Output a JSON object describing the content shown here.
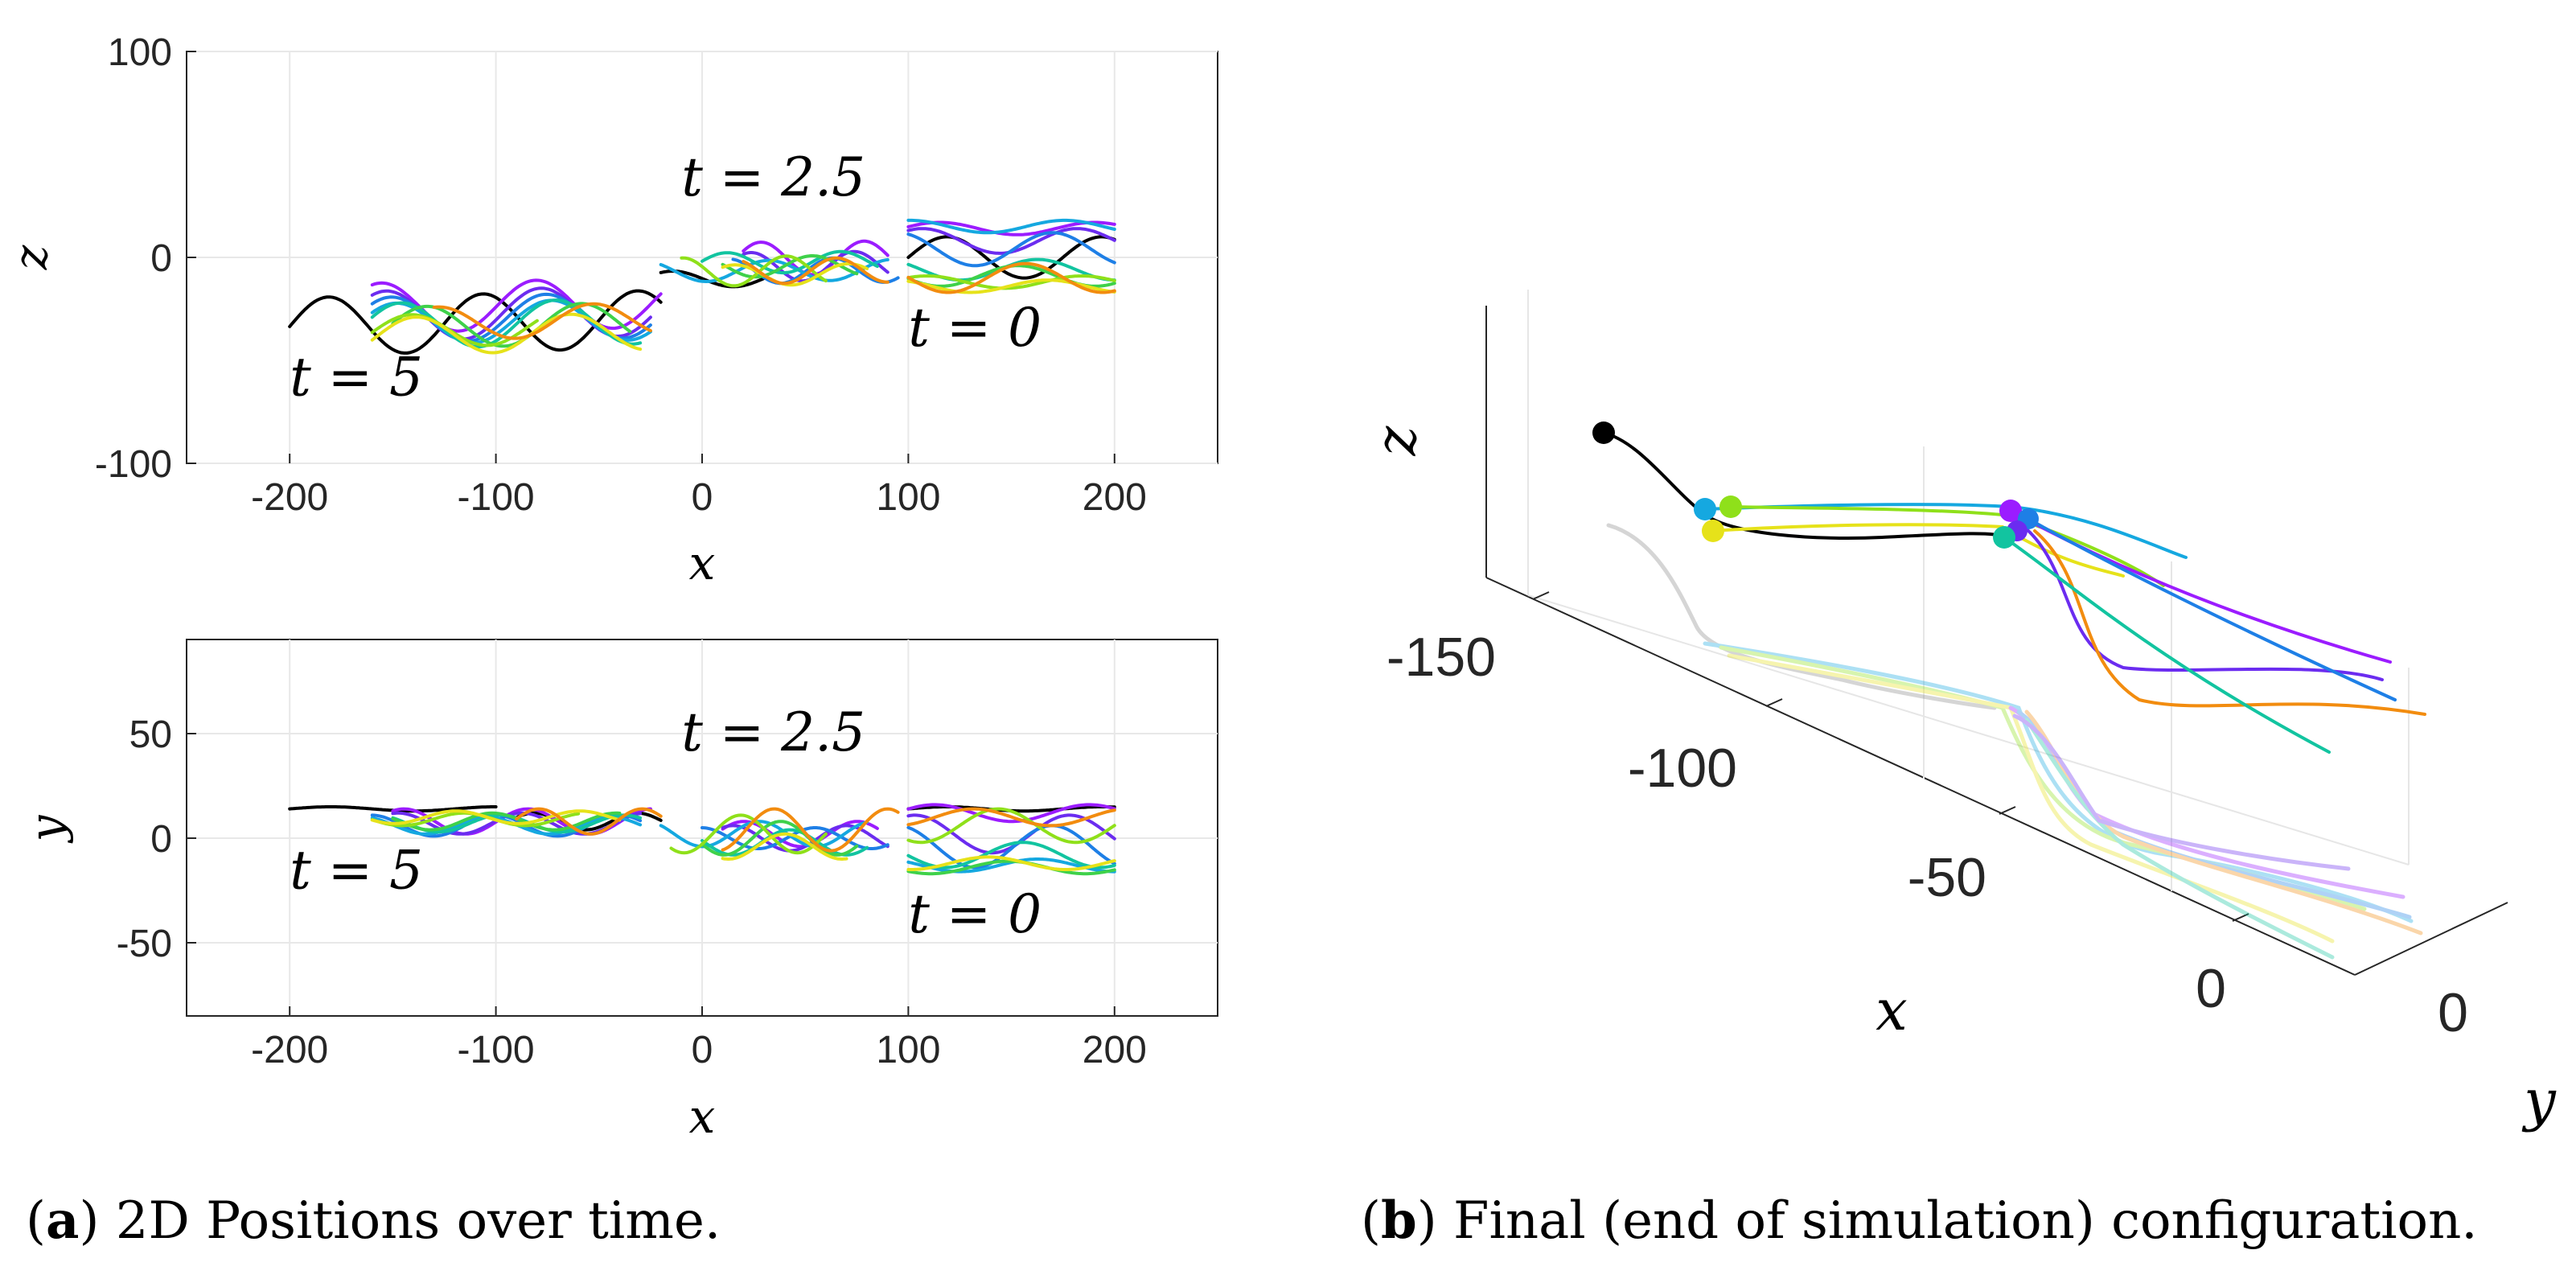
{
  "chart_data": [
    {
      "type": "line",
      "panel": "top-left",
      "title": "",
      "xlabel": "x",
      "ylabel": "z",
      "xlim": [
        -250,
        250
      ],
      "ylim": [
        -100,
        100
      ],
      "xticks": [
        "-200",
        "-100",
        "0",
        "100",
        "200"
      ],
      "yticks": [
        "100",
        "0",
        "-100"
      ],
      "grid": true,
      "annotations": [
        {
          "text": "t = 5",
          "x": -200,
          "y": -67
        },
        {
          "text": "t = 2.5",
          "x": -10,
          "y": 30
        },
        {
          "text": "t = 0",
          "x": 100,
          "y": -43
        }
      ],
      "series": [
        {
          "name": "black",
          "color": "#000000",
          "segments": [
            {
              "x0": -200,
              "x1": -20,
              "base": -30,
              "amp": 14,
              "period": 75,
              "phase": 0,
              "slope": 0.2,
              "dx": 0
            },
            {
              "x0": -20,
              "x1": 30,
              "base": -10,
              "amp": 4,
              "period": 60,
              "phase": 1,
              "slope": 0.15,
              "dx": 0
            },
            {
              "x0": 100,
              "x1": 200,
              "base": 0,
              "amp": 10,
              "period": 75,
              "phase": 0,
              "slope": 0,
              "dx": 0
            }
          ]
        },
        {
          "name": "purple",
          "color": "#9b1cff",
          "segments": [
            {
              "x0": -160,
              "x1": -20,
              "base": -22,
              "amp": 12,
              "period": 75,
              "phase": 1.2,
              "slope": 0.18,
              "dx": 0
            },
            {
              "x0": 20,
              "x1": 90,
              "base": 0,
              "amp": 8,
              "period": 50,
              "phase": 0.5,
              "slope": 0.1,
              "dx": 0
            },
            {
              "x0": 100,
              "x1": 200,
              "base": 14,
              "amp": 3,
              "period": 75,
              "phase": 0.3,
              "slope": 0,
              "dx": 0
            }
          ]
        },
        {
          "name": "violet",
          "color": "#6b2cf0",
          "segments": [
            {
              "x0": -160,
              "x1": -25,
              "base": -26,
              "amp": 12,
              "period": 75,
              "phase": 1.0,
              "slope": 0.18,
              "dx": 0
            },
            {
              "x0": 20,
              "x1": 90,
              "base": -4,
              "amp": 7,
              "period": 50,
              "phase": 1.1,
              "slope": 0.1,
              "dx": 0
            },
            {
              "x0": 100,
              "x1": 200,
              "base": 8,
              "amp": 6,
              "period": 75,
              "phase": 1.0,
              "slope": 0,
              "dx": 0
            }
          ]
        },
        {
          "name": "blue",
          "color": "#1e7fe6",
          "segments": [
            {
              "x0": -160,
              "x1": -25,
              "base": -28,
              "amp": 11,
              "period": 75,
              "phase": 0.8,
              "slope": 0.18,
              "dx": 0
            },
            {
              "x0": 15,
              "x1": 95,
              "base": -6,
              "amp": 6,
              "period": 50,
              "phase": 1.8,
              "slope": 0.1,
              "dx": 0
            },
            {
              "x0": 100,
              "x1": 200,
              "base": 4,
              "amp": 8,
              "period": 75,
              "phase": 2.0,
              "slope": 0,
              "dx": 0
            }
          ]
        },
        {
          "name": "cyan",
          "color": "#15a8e0",
          "segments": [
            {
              "x0": -160,
              "x1": -25,
              "base": -30,
              "amp": 10,
              "period": 75,
              "phase": 0.6,
              "slope": 0.18,
              "dx": 0
            },
            {
              "x0": -20,
              "x1": 90,
              "base": -6,
              "amp": 5,
              "period": 60,
              "phase": 2.4,
              "slope": 0.08,
              "dx": 0
            },
            {
              "x0": 100,
              "x1": 200,
              "base": 15,
              "amp": 3,
              "period": 75,
              "phase": 1.5,
              "slope": 0,
              "dx": 0
            }
          ]
        },
        {
          "name": "teal",
          "color": "#12c4a0",
          "segments": [
            {
              "x0": -160,
              "x1": -30,
              "base": -31,
              "amp": 11,
              "period": 75,
              "phase": 0.4,
              "slope": 0.18,
              "dx": 0
            },
            {
              "x0": 0,
              "x1": 85,
              "base": -2,
              "amp": 5,
              "period": 55,
              "phase": 0.2,
              "slope": 0.1,
              "dx": 0
            },
            {
              "x0": 100,
              "x1": 200,
              "base": -6,
              "amp": 5,
              "period": 75,
              "phase": 2.6,
              "slope": 0,
              "dx": 0
            }
          ]
        },
        {
          "name": "green",
          "color": "#3fd14a",
          "segments": [
            {
              "x0": -150,
              "x1": -35,
              "base": -32,
              "amp": 10,
              "period": 75,
              "phase": 0.2,
              "slope": 0.18,
              "dx": 0
            },
            {
              "x0": 10,
              "x1": 75,
              "base": -4,
              "amp": 5,
              "period": 55,
              "phase": 2.9,
              "slope": 0.1,
              "dx": 0
            },
            {
              "x0": 100,
              "x1": 200,
              "base": -9,
              "amp": 5,
              "period": 75,
              "phase": 3.4,
              "slope": 0,
              "dx": 0
            }
          ]
        },
        {
          "name": "lime",
          "color": "#8fe01a",
          "segments": [
            {
              "x0": -160,
              "x1": -80,
              "base": -34,
              "amp": 8,
              "period": 75,
              "phase": 0.0,
              "slope": 0.3,
              "dx": 0
            },
            {
              "x0": -10,
              "x1": 60,
              "base": -6,
              "amp": 7,
              "period": 50,
              "phase": 1.5,
              "slope": 0.18,
              "dx": 0
            },
            {
              "x0": 100,
              "x1": 200,
              "base": -12,
              "amp": 3,
              "period": 75,
              "phase": 0.8,
              "slope": 0,
              "dx": 0
            }
          ]
        },
        {
          "name": "yellow",
          "color": "#e6e21a",
          "segments": [
            {
              "x0": -160,
              "x1": -30,
              "base": -36,
              "amp": 9,
              "period": 75,
              "phase": -0.2,
              "slope": 0.18,
              "dx": 0
            },
            {
              "x0": 10,
              "x1": 80,
              "base": -8,
              "amp": 5,
              "period": 55,
              "phase": 0.9,
              "slope": 0.1,
              "dx": 0
            },
            {
              "x0": 100,
              "x1": 200,
              "base": -14,
              "amp": 3,
              "period": 75,
              "phase": 2.2,
              "slope": 0,
              "dx": 0
            }
          ]
        },
        {
          "name": "orange",
          "color": "#f28c0f",
          "segments": [
            {
              "x0": -130,
              "x1": -25,
              "base": -30,
              "amp": 8,
              "period": 75,
              "phase": 1.4,
              "slope": 0.2,
              "dx": 0
            },
            {
              "x0": 20,
              "x1": 90,
              "base": -6,
              "amp": 6,
              "period": 50,
              "phase": 2.2,
              "slope": 0.12,
              "dx": 0
            },
            {
              "x0": 100,
              "x1": 200,
              "base": -10,
              "amp": 7,
              "period": 75,
              "phase": 3.1,
              "slope": 0,
              "dx": 0
            }
          ]
        }
      ]
    },
    {
      "type": "line",
      "panel": "bottom-left",
      "title": "",
      "xlabel": "x",
      "ylabel": "y",
      "xlim": [
        -250,
        250
      ],
      "ylim": [
        -85,
        95
      ],
      "xticks": [
        "-200",
        "-100",
        "0",
        "100",
        "200"
      ],
      "yticks": [
        "50",
        "0",
        "-50"
      ],
      "grid": true,
      "annotations": [
        {
          "text": "t = 5",
          "x": -200,
          "y": -24
        },
        {
          "text": "t = 2.5",
          "x": -10,
          "y": 42
        },
        {
          "text": "t = 0",
          "x": 100,
          "y": -45
        }
      ],
      "series": [
        {
          "name": "black",
          "color": "#000000",
          "segments": [
            {
              "x0": -200,
              "x1": -100,
              "base": 14,
              "amp": 1,
              "period": 80,
              "phase": 0,
              "slope": 0,
              "dx": 0
            },
            {
              "x0": -90,
              "x1": -20,
              "base": 8,
              "amp": 4,
              "period": 50,
              "phase": 0.5,
              "slope": 0,
              "dx": 0
            },
            {
              "x0": 100,
              "x1": 200,
              "base": 14,
              "amp": 1,
              "period": 75,
              "phase": 0,
              "slope": 0,
              "dx": 0
            }
          ]
        },
        {
          "name": "purple",
          "color": "#9b1cff",
          "segments": [
            {
              "x0": -150,
              "x1": -25,
              "base": 8,
              "amp": 6,
              "period": 60,
              "phase": 1.0,
              "slope": 0,
              "dx": 0
            },
            {
              "x0": 10,
              "x1": 85,
              "base": 2,
              "amp": 6,
              "period": 55,
              "phase": 0.4,
              "slope": 0,
              "dx": 0
            },
            {
              "x0": 100,
              "x1": 200,
              "base": 12,
              "amp": 4,
              "period": 75,
              "phase": 0.5,
              "slope": 0,
              "dx": 0
            }
          ]
        },
        {
          "name": "violet",
          "color": "#6b2cf0",
          "segments": [
            {
              "x0": -150,
              "x1": -30,
              "base": 7,
              "amp": 5,
              "period": 60,
              "phase": 1.3,
              "slope": 0,
              "dx": 0
            },
            {
              "x0": 10,
              "x1": 90,
              "base": 0,
              "amp": 6,
              "period": 55,
              "phase": 1.0,
              "slope": 0,
              "dx": 0
            },
            {
              "x0": 100,
              "x1": 200,
              "base": 2,
              "amp": 9,
              "period": 75,
              "phase": 1.3,
              "slope": 0,
              "dx": 0
            }
          ]
        },
        {
          "name": "blue",
          "color": "#1e7fe6",
          "segments": [
            {
              "x0": -160,
              "x1": -30,
              "base": 6,
              "amp": 5,
              "period": 60,
              "phase": 1.6,
              "slope": 0,
              "dx": 0
            },
            {
              "x0": 0,
              "x1": 90,
              "base": 0,
              "amp": 5,
              "period": 55,
              "phase": 1.6,
              "slope": 0,
              "dx": 0
            },
            {
              "x0": 100,
              "x1": 200,
              "base": -4,
              "amp": 10,
              "period": 75,
              "phase": 2.0,
              "slope": 0,
              "dx": 0
            }
          ]
        },
        {
          "name": "cyan",
          "color": "#15a8e0",
          "segments": [
            {
              "x0": -160,
              "x1": -30,
              "base": 6,
              "amp": 4,
              "period": 60,
              "phase": 2.0,
              "slope": 0,
              "dx": 0
            },
            {
              "x0": -20,
              "x1": 80,
              "base": 2,
              "amp": 6,
              "period": 55,
              "phase": 2.4,
              "slope": 0,
              "dx": 0
            },
            {
              "x0": 100,
              "x1": 200,
              "base": -13,
              "amp": 3,
              "period": 75,
              "phase": 2.6,
              "slope": 0,
              "dx": 0
            }
          ]
        },
        {
          "name": "teal",
          "color": "#12c4a0",
          "segments": [
            {
              "x0": -150,
              "x1": -30,
              "base": 7,
              "amp": 4,
              "period": 60,
              "phase": 2.4,
              "slope": 0,
              "dx": 0
            },
            {
              "x0": 0,
              "x1": 80,
              "base": -2,
              "amp": 6,
              "period": 55,
              "phase": 3.0,
              "slope": 0,
              "dx": 0
            },
            {
              "x0": 100,
              "x1": 200,
              "base": -8,
              "amp": 6,
              "period": 75,
              "phase": 3.2,
              "slope": 0,
              "dx": 0
            }
          ]
        },
        {
          "name": "green",
          "color": "#3fd14a",
          "segments": [
            {
              "x0": -150,
              "x1": -40,
              "base": 8,
              "amp": 4,
              "period": 60,
              "phase": 2.8,
              "slope": 0,
              "dx": 0
            },
            {
              "x0": 0,
              "x1": 75,
              "base": 0,
              "amp": 8,
              "period": 55,
              "phase": 3.5,
              "slope": 0,
              "dx": 0
            },
            {
              "x0": 100,
              "x1": 200,
              "base": -14,
              "amp": 3,
              "period": 75,
              "phase": 3.8,
              "slope": 0,
              "dx": 0
            }
          ]
        },
        {
          "name": "lime",
          "color": "#8fe01a",
          "segments": [
            {
              "x0": -160,
              "x1": -60,
              "base": 9,
              "amp": 3,
              "period": 60,
              "phase": 3.2,
              "slope": 0,
              "dx": 0
            },
            {
              "x0": -15,
              "x1": 60,
              "base": 2,
              "amp": 9,
              "period": 55,
              "phase": 4.0,
              "slope": 0,
              "dx": 0
            },
            {
              "x0": 100,
              "x1": 200,
              "base": 6,
              "amp": 8,
              "period": 75,
              "phase": 4.2,
              "slope": 0,
              "dx": 0
            }
          ]
        },
        {
          "name": "yellow",
          "color": "#e6e21a",
          "segments": [
            {
              "x0": -160,
              "x1": -40,
              "base": 10,
              "amp": 3,
              "period": 60,
              "phase": 3.6,
              "slope": 0,
              "dx": 0
            },
            {
              "x0": 10,
              "x1": 70,
              "base": -4,
              "amp": 6,
              "period": 55,
              "phase": 4.4,
              "slope": 0,
              "dx": 0
            },
            {
              "x0": 100,
              "x1": 200,
              "base": -12,
              "amp": 3,
              "period": 75,
              "phase": 4.6,
              "slope": 0,
              "dx": 0
            }
          ]
        },
        {
          "name": "orange",
          "color": "#f28c0f",
          "segments": [
            {
              "x0": -90,
              "x1": -20,
              "base": 8,
              "amp": 6,
              "period": 50,
              "phase": 0.2,
              "slope": 0,
              "dx": 0
            },
            {
              "x0": 10,
              "x1": 95,
              "base": 4,
              "amp": 10,
              "period": 55,
              "phase": 5.0,
              "slope": 0,
              "dx": 0
            },
            {
              "x0": 100,
              "x1": 200,
              "base": 10,
              "amp": 4,
              "period": 75,
              "phase": 5.2,
              "slope": 0,
              "dx": 0
            }
          ]
        }
      ]
    },
    {
      "type": "line",
      "panel": "right-3d",
      "title": "",
      "xlabel": "x",
      "ylabel": "y",
      "zlabel": "z",
      "xticks": [
        "-150",
        "-100",
        "-50",
        "0"
      ],
      "yticks": [
        "0"
      ],
      "projection": "3d",
      "shadows": "faded projections onto the floor plane",
      "series_endpoints": "filled circle at each agent's leading end",
      "series": [
        {
          "name": "black",
          "color": "#000000"
        },
        {
          "name": "cyan",
          "color": "#15a8e0"
        },
        {
          "name": "lime",
          "color": "#8fe01a"
        },
        {
          "name": "yellow",
          "color": "#e6e21a"
        },
        {
          "name": "purple",
          "color": "#9b1cff"
        },
        {
          "name": "violet",
          "color": "#6b2cf0"
        },
        {
          "name": "blue",
          "color": "#1e7fe6"
        },
        {
          "name": "teal",
          "color": "#12c4a0"
        },
        {
          "name": "orange",
          "color": "#f28c0f"
        }
      ]
    }
  ],
  "captions": {
    "a_label": "a",
    "a_text": " 2D Positions over time.",
    "b_label": "b",
    "b_text": " Final (end of simulation) configuration."
  }
}
